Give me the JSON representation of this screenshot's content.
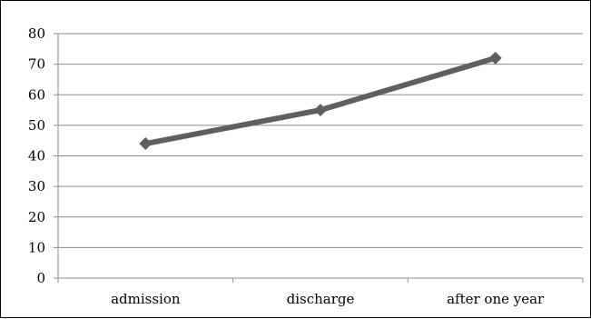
{
  "chart_data": {
    "type": "line",
    "categories": [
      "admission",
      "discharge",
      "after one year"
    ],
    "series": [
      {
        "values": [
          44,
          55,
          72
        ]
      }
    ],
    "y_ticks": [
      "0",
      "10",
      "20",
      "30",
      "40",
      "50",
      "60",
      "70",
      "80"
    ],
    "ylim": [
      0,
      80
    ],
    "grid": true,
    "legend": "none",
    "title": "",
    "xlabel": "",
    "ylabel": "",
    "colors": {
      "line": "#5f5f5f",
      "grid": "#8c8c8c",
      "axis": "#8c8c8c",
      "text": "#000000"
    }
  }
}
